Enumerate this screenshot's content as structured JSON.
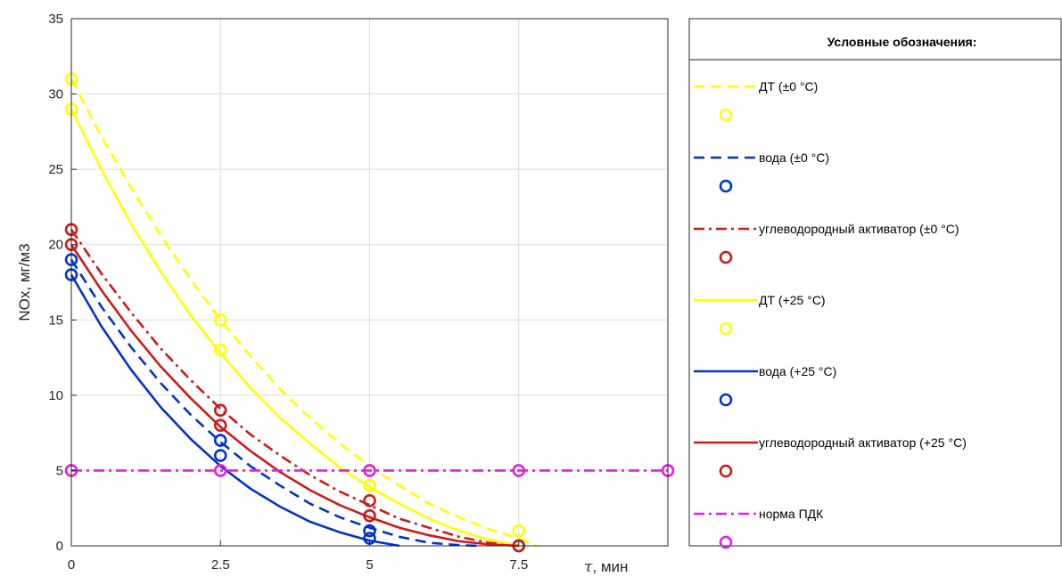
{
  "chart_data": {
    "type": "line",
    "xlabel_symbol": "τ",
    "xlabel_unit": ", мин",
    "ylabel": "NOx, мг/м3",
    "xlim": [
      0,
      10
    ],
    "ylim": [
      0,
      35
    ],
    "xticks": [
      0,
      2.5,
      5,
      7.5
    ],
    "xtick_labels": [
      "0",
      "2.5",
      "5",
      "7.5"
    ],
    "yticks": [
      0,
      5,
      10,
      15,
      20,
      25,
      30,
      35
    ],
    "ytick_labels": [
      "0",
      "5",
      "10",
      "15",
      "20",
      "25",
      "30",
      "35"
    ],
    "grid": true,
    "legend_title": "Условные обозначения:",
    "legend_placement": "right-outside",
    "series": [
      {
        "name": "ДТ (±0 °C)",
        "color": "#ffff00",
        "style": "dashed",
        "points": {
          "x": [
            0,
            2.5,
            5,
            7.5
          ],
          "y": [
            31,
            15,
            4,
            1
          ]
        },
        "curve": {
          "x": [
            0,
            0.5,
            1,
            1.5,
            2,
            2.5,
            3,
            3.5,
            4,
            4.5,
            5,
            5.5,
            6,
            6.5,
            7,
            7.5,
            7.8
          ],
          "y": [
            31.0,
            27.2,
            23.8,
            20.6,
            17.7,
            15.0,
            12.6,
            10.4,
            8.5,
            6.8,
            5.3,
            4.0,
            2.8,
            1.9,
            1.1,
            0.5,
            0.0
          ]
        }
      },
      {
        "name": "вода (±0 °C)",
        "color": "#0033cc",
        "style": "dashed",
        "points": {
          "x": [
            0,
            2.5,
            5,
            7.5
          ],
          "y": [
            19,
            7,
            1,
            0
          ]
        },
        "curve": {
          "x": [
            0,
            0.5,
            1,
            1.5,
            2,
            2.5,
            3,
            3.5,
            4,
            4.5,
            5,
            5.5,
            6,
            6.5,
            6.8
          ],
          "y": [
            19.0,
            15.9,
            13.2,
            10.8,
            8.7,
            6.9,
            5.3,
            4.0,
            2.8,
            1.9,
            1.2,
            0.6,
            0.2,
            0.05,
            0.0
          ]
        }
      },
      {
        "name": "углеводородный активатор (±0 °C)",
        "color": "#cc1a1a",
        "style": "dashdot",
        "points": {
          "x": [
            0,
            2.5,
            5,
            7.5
          ],
          "y": [
            21,
            9,
            3,
            0
          ]
        },
        "curve": {
          "x": [
            0,
            0.5,
            1,
            1.5,
            2,
            2.5,
            3,
            3.5,
            4,
            4.5,
            5,
            5.5,
            6,
            6.5,
            7,
            7.5
          ],
          "y": [
            21.0,
            18.1,
            15.5,
            13.1,
            11.0,
            9.1,
            7.4,
            6.0,
            4.7,
            3.6,
            2.7,
            1.8,
            1.2,
            0.6,
            0.2,
            0.0
          ]
        }
      },
      {
        "name": "ДТ (+25 °C)",
        "color": "#ffff00",
        "style": "solid",
        "points": {
          "x": [
            0,
            2.5,
            5,
            7.5
          ],
          "y": [
            29,
            13,
            4,
            0
          ]
        },
        "curve": {
          "x": [
            0,
            0.5,
            1,
            1.5,
            2,
            2.5,
            3,
            3.5,
            4,
            4.5,
            5,
            5.5,
            6,
            6.5,
            7,
            7.5
          ],
          "y": [
            29.0,
            25.0,
            21.4,
            18.2,
            15.3,
            12.8,
            10.5,
            8.5,
            6.8,
            5.2,
            3.9,
            2.8,
            1.8,
            1.0,
            0.4,
            0.0
          ]
        }
      },
      {
        "name": "вода (+25 °C)",
        "color": "#0033cc",
        "style": "solid",
        "points": {
          "x": [
            0,
            2.5,
            5,
            7.5
          ],
          "y": [
            18,
            6,
            0.5,
            0
          ]
        },
        "curve": {
          "x": [
            0,
            0.5,
            1,
            1.5,
            2,
            2.5,
            3,
            3.5,
            4,
            4.5,
            5,
            5.5
          ],
          "y": [
            18.0,
            14.6,
            11.7,
            9.2,
            7.1,
            5.3,
            3.8,
            2.6,
            1.6,
            0.9,
            0.35,
            0.0
          ]
        }
      },
      {
        "name": "углеводородный активатор (+25 °C)",
        "color": "#cc1a1a",
        "style": "solid",
        "points": {
          "x": [
            0,
            2.5,
            5,
            7.5
          ],
          "y": [
            20,
            8,
            2,
            0
          ]
        },
        "curve": {
          "x": [
            0,
            0.5,
            1,
            1.5,
            2,
            2.5,
            3,
            3.5,
            4,
            4.5,
            5,
            5.5,
            6,
            6.5,
            7,
            7.5
          ],
          "y": [
            20.0,
            17.0,
            14.3,
            11.9,
            9.8,
            7.9,
            6.3,
            4.9,
            3.7,
            2.7,
            1.9,
            1.2,
            0.7,
            0.3,
            0.1,
            0.0
          ]
        }
      },
      {
        "name": "норма ПДК",
        "color": "#e020e0",
        "style": "dashdot",
        "points": {
          "x": [
            0,
            2.5,
            5,
            7.5,
            10
          ],
          "y": [
            5,
            5,
            5,
            5,
            5
          ]
        },
        "curve": {
          "x": [
            0,
            10
          ],
          "y": [
            5,
            5
          ]
        }
      }
    ]
  }
}
